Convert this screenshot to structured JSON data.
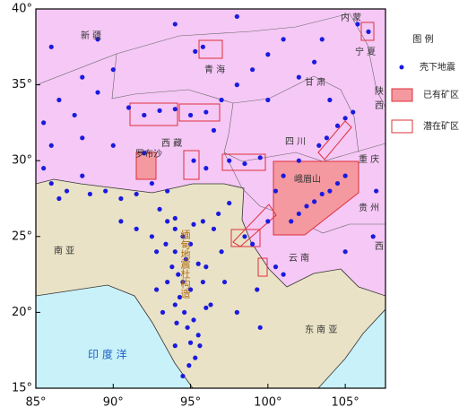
{
  "map_data": {
    "xlim": [
      85,
      107.6
    ],
    "ylim": [
      15,
      40
    ],
    "xticks": [
      {
        "value": 85,
        "label": "85°"
      },
      {
        "value": 90,
        "label": "90°"
      },
      {
        "value": 95,
        "label": "95°"
      },
      {
        "value": 100,
        "label": "100°"
      },
      {
        "value": 105,
        "label": "105°"
      }
    ],
    "yticks": [
      {
        "value": 15,
        "label": "15°"
      },
      {
        "value": 20,
        "label": "20°"
      },
      {
        "value": 25,
        "label": "25°"
      },
      {
        "value": 30,
        "label": "30°"
      },
      {
        "value": 35,
        "label": "35°"
      },
      {
        "value": 40,
        "label": "40°"
      }
    ],
    "legend": {
      "title": "图 例",
      "items": [
        "壳下地震",
        "已有矿区",
        "潜在矿区"
      ]
    },
    "labels": [
      "新 疆",
      "青 海",
      "甘 肃",
      "内 蒙",
      "宁 夏",
      "陕",
      "西",
      "四 川",
      "重 庆",
      "贵 州",
      "云 南",
      "西 藏",
      "罗布沙",
      "峨眉山",
      "南 亚",
      "东 南 亚",
      "印 度 洋",
      "缅甸地震杜构造",
      "西"
    ],
    "earthquakes": {
      "color": "#1a1adf",
      "lon": [
        93.5,
        94,
        94.5,
        95,
        94,
        93.8,
        94.2,
        94.5,
        95,
        94.3,
        94,
        94.6,
        95.2,
        94.8,
        95.5,
        95,
        95.3,
        94,
        93.5,
        92.8,
        92.5,
        91.5,
        90.5,
        93,
        95.8,
        96.5,
        97,
        96,
        95.8,
        96.3,
        93.2,
        92.8,
        94.7,
        95.5,
        96.8,
        97.5,
        94,
        93.4,
        95.2,
        94.1,
        94.9,
        94.5,
        95.6,
        86,
        87,
        88.5,
        89.5,
        90.5,
        91.5,
        92.5,
        93.5,
        88,
        86.5,
        85.5,
        86.5,
        87.5,
        88,
        89,
        90,
        91,
        92,
        93,
        94,
        95,
        96,
        96.5,
        97,
        98,
        99,
        100,
        95.3,
        95.8,
        97.5,
        98.5,
        99.5,
        95.2,
        96,
        92,
        90,
        88,
        86,
        85.5,
        100,
        102,
        103,
        104,
        101,
        89,
        86,
        94,
        98,
        103.5,
        105.8,
        106.5,
        101.5,
        102,
        102.5,
        103,
        103.5,
        104,
        104.5,
        105,
        103.3,
        103.8,
        104.5,
        105,
        105.5,
        102,
        101,
        100.5,
        100,
        99,
        98.5,
        100.5,
        99.3,
        101,
        97.2,
        98,
        96,
        99.5,
        107,
        106.8,
        105
      ],
      "lat": [
        26,
        25.5,
        25,
        24.5,
        24,
        23,
        22.5,
        22,
        21.5,
        21,
        20.5,
        20,
        19.5,
        19,
        18.5,
        18,
        17,
        17.8,
        22,
        24,
        25,
        25.5,
        26,
        26.8,
        26,
        25.5,
        24,
        23,
        22,
        20.5,
        20,
        21.5,
        23.5,
        23.2,
        26.5,
        27.2,
        26.2,
        24.5,
        25.8,
        19.3,
        16.5,
        15.8,
        17.8,
        28.5,
        28,
        27.8,
        28,
        27.5,
        27.8,
        28.5,
        28,
        29,
        27.5,
        32.5,
        34,
        33,
        35.5,
        34.5,
        36,
        33.5,
        33,
        33.3,
        33.4,
        33,
        33.2,
        32,
        34,
        35,
        36,
        37,
        37.2,
        37.5,
        30,
        29.8,
        30.2,
        30,
        29.5,
        30.5,
        31,
        31.5,
        31,
        29.5,
        34,
        35.5,
        36.5,
        34,
        38,
        38,
        37.5,
        39,
        39.5,
        38,
        39,
        38.5,
        26,
        26.5,
        27,
        27.3,
        27.8,
        28,
        28.5,
        29,
        31,
        31.5,
        32.3,
        32.8,
        33.2,
        30,
        29,
        28,
        26,
        24.5,
        25,
        23,
        21.5,
        22.5,
        22,
        20,
        20.3,
        19,
        28,
        25,
        24
      ]
    }
  }
}
